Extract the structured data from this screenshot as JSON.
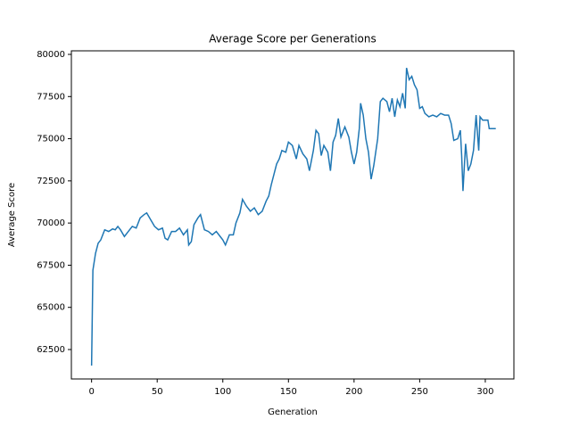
{
  "chart_data": {
    "type": "line",
    "title": "Average Score per Generations",
    "x_label": "Generation",
    "y_label": "Average Score",
    "xlim": [
      -15.4,
      321.8
    ],
    "ylim": [
      60755,
      80211
    ],
    "xticks": [
      0,
      50,
      100,
      150,
      200,
      250,
      300
    ],
    "yticks": [
      62500,
      65000,
      67500,
      70000,
      72500,
      75000,
      77500,
      80000
    ],
    "series": [
      {
        "color": "#1f77b4",
        "x": [
          0,
          1,
          3,
          5,
          7,
          10,
          13,
          16,
          18,
          20,
          22,
          25,
          28,
          31,
          34,
          37,
          40,
          42,
          45,
          48,
          51,
          54,
          56,
          58,
          61,
          64,
          67,
          70,
          73,
          74,
          76,
          78,
          81,
          83,
          86,
          89,
          92,
          95,
          98,
          100,
          102,
          105,
          108,
          110,
          113,
          115,
          118,
          121,
          124,
          127,
          130,
          133,
          135,
          137,
          139,
          141,
          143,
          145,
          148,
          150,
          153,
          156,
          158,
          161,
          164,
          166,
          169,
          171,
          173,
          175,
          177,
          180,
          182,
          184,
          186,
          188,
          190,
          193,
          196,
          198,
          200,
          202,
          204,
          205,
          207,
          209,
          211,
          213,
          215,
          218,
          220,
          222,
          225,
          227,
          229,
          231,
          233,
          235,
          237,
          239,
          240,
          242,
          244,
          246,
          248,
          250,
          252,
          254,
          257,
          260,
          263,
          266,
          269,
          272,
          274,
          276,
          279,
          281,
          282,
          283,
          285,
          287,
          289,
          291,
          293,
          295,
          296,
          298,
          302,
          303,
          308
        ],
        "values": [
          61550,
          67200,
          68200,
          68800,
          69000,
          69600,
          69500,
          69650,
          69600,
          69800,
          69600,
          69200,
          69500,
          69800,
          69700,
          70300,
          70500,
          70600,
          70200,
          69800,
          69600,
          69700,
          69100,
          69000,
          69500,
          69500,
          69700,
          69300,
          69600,
          68700,
          68900,
          69900,
          70300,
          70500,
          69600,
          69500,
          69300,
          69500,
          69200,
          69000,
          68700,
          69300,
          69300,
          70000,
          70600,
          71400,
          71000,
          70700,
          70900,
          70500,
          70700,
          71300,
          71600,
          72300,
          72900,
          73500,
          73800,
          74300,
          74200,
          74800,
          74600,
          73800,
          74600,
          74100,
          73800,
          73100,
          74300,
          75500,
          75300,
          74000,
          74600,
          74200,
          73100,
          74800,
          75200,
          76200,
          75100,
          75700,
          75100,
          74200,
          73500,
          74200,
          75600,
          77100,
          76400,
          75000,
          74200,
          72600,
          73400,
          75000,
          77200,
          77400,
          77200,
          76600,
          77400,
          76300,
          77300,
          76900,
          77700,
          76800,
          79200,
          78500,
          78700,
          78200,
          77900,
          76800,
          76900,
          76500,
          76300,
          76400,
          76300,
          76500,
          76400,
          76400,
          75900,
          74900,
          75000,
          75500,
          74000,
          71900,
          74700,
          73100,
          73500,
          74300,
          76400,
          74300,
          76300,
          76100,
          76100,
          75600,
          75600
        ]
      }
    ]
  }
}
